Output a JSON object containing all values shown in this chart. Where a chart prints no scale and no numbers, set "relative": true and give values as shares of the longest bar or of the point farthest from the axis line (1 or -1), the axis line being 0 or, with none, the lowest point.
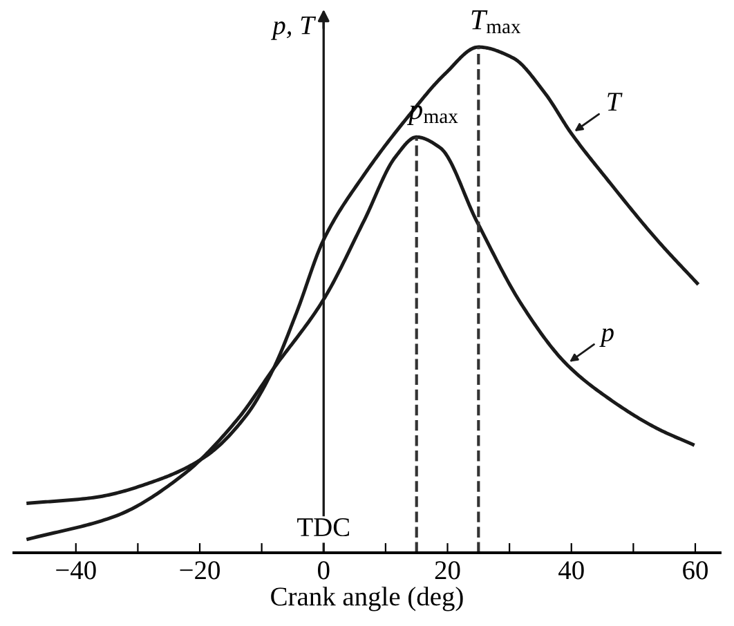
{
  "chart_data": {
    "type": "line",
    "relative": true,
    "xlabel": "Crank angle (deg)",
    "ylabel": "p, T",
    "xlim": [
      -50,
      64
    ],
    "xticks": [
      {
        "value": -40,
        "label": "−40"
      },
      {
        "value": -30,
        "label": null
      },
      {
        "value": -20,
        "label": "−20"
      },
      {
        "value": -10,
        "label": null
      },
      0,
      {
        "value": 10,
        "label": null
      },
      20,
      {
        "value": 30,
        "label": null
      },
      40,
      {
        "value": 50,
        "label": null
      },
      60
    ],
    "series": [
      {
        "name": "T",
        "color": "#1a1a1a",
        "x": [
          -47.7,
          -37.2,
          -26.3,
          -19.0,
          -12.4,
          -8.1,
          -4.4,
          0,
          6.5,
          13.8,
          19.6,
          25,
          30.5,
          35.6,
          40.0,
          45.8,
          53.8,
          60.3
        ],
        "values": [
          0.098,
          0.109,
          0.146,
          0.191,
          0.273,
          0.364,
          0.474,
          0.619,
          0.747,
          0.865,
          0.947,
          1.0,
          0.979,
          0.911,
          0.829,
          0.738,
          0.619,
          0.533
        ]
      },
      {
        "name": "p",
        "color": "#1a1a1a",
        "x": [
          -47.7,
          -33.5,
          -22.6,
          -13.9,
          -8.1,
          0,
          6.5,
          11.6,
          15,
          18.8,
          24.7,
          31.9,
          39.2,
          46.5,
          53.8,
          59.6
        ],
        "values": [
          0.027,
          0.073,
          0.155,
          0.264,
          0.364,
          0.501,
          0.656,
          0.783,
          0.822,
          0.801,
          0.656,
          0.492,
          0.373,
          0.301,
          0.246,
          0.214
        ]
      }
    ],
    "ref_lines": [
      {
        "axis": "x",
        "value": 0,
        "label": "TDC",
        "line_style": "solid"
      },
      {
        "axis": "x",
        "value": 15,
        "line_style": "dashed"
      },
      {
        "axis": "x",
        "value": 25,
        "line_style": "dashed"
      }
    ],
    "annotations": [
      {
        "text": "T$_{max}$",
        "x": 25,
        "y": 1.0
      },
      {
        "text": "p$_{max}$",
        "x": 15,
        "y": 0.822
      }
    ],
    "grid": false,
    "legend": "right",
    "line_style": "solid",
    "marker": "none"
  }
}
